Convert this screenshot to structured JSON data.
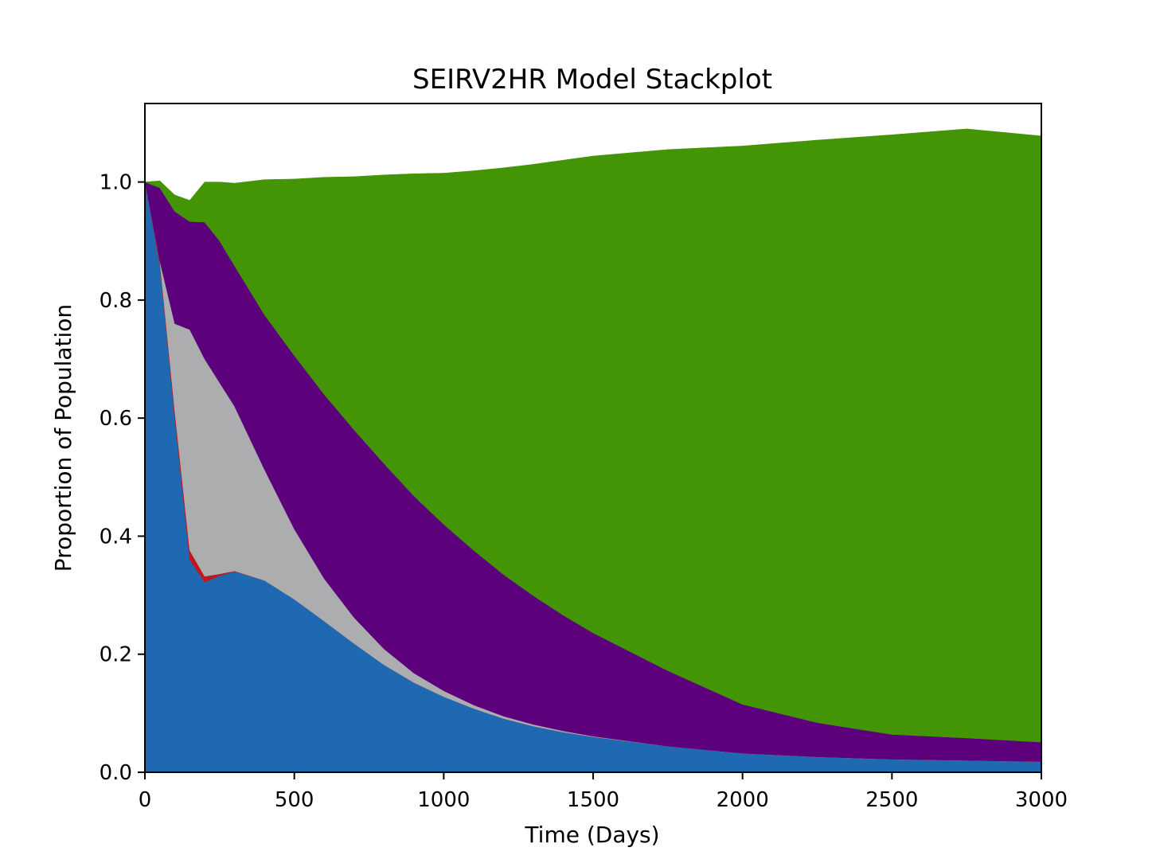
{
  "chart_data": {
    "type": "area",
    "stacked": true,
    "title": "SEIRV2HR Model Stackplot",
    "xlabel": "Time (Days)",
    "ylabel": "Proportion of Population",
    "xlim": [
      0,
      3000
    ],
    "ylim": [
      0,
      1.133
    ],
    "xticks": [
      0,
      500,
      1000,
      1500,
      2000,
      2500,
      3000
    ],
    "xtick_labels": [
      "0",
      "500",
      "1000",
      "1500",
      "2000",
      "2500",
      "3000"
    ],
    "yticks": [
      0.0,
      0.2,
      0.4,
      0.6,
      0.8,
      1.0
    ],
    "ytick_labels": [
      "0.0",
      "0.2",
      "0.4",
      "0.6",
      "0.8",
      "1.0"
    ],
    "grid": false,
    "legend": "none",
    "x": [
      0,
      50,
      100,
      150,
      200,
      250,
      300,
      400,
      500,
      600,
      700,
      800,
      900,
      1000,
      1100,
      1200,
      1300,
      1400,
      1500,
      1750,
      2000,
      2250,
      2500,
      2750,
      3000
    ],
    "series": [
      {
        "color": "#1f69b3",
        "values": [
          1.0,
          0.86,
          0.6,
          0.36,
          0.322,
          0.333,
          0.34,
          0.325,
          0.293,
          0.256,
          0.218,
          0.182,
          0.152,
          0.128,
          0.108,
          0.091,
          0.078,
          0.068,
          0.06,
          0.044,
          0.032,
          0.026,
          0.022,
          0.02,
          0.018
        ]
      },
      {
        "color": "#c0161c",
        "values": [
          0.0,
          0.006,
          0.012,
          0.016,
          0.01,
          0.003,
          0.001,
          0.0,
          0.0,
          0.0,
          0.0,
          0.0,
          0.0,
          0.0,
          0.0,
          0.0,
          0.0,
          0.0,
          0.0,
          0.0,
          0.0,
          0.0,
          0.0,
          0.0,
          0.0
        ]
      },
      {
        "color": "#acadaf",
        "values": [
          0.0,
          0.0,
          0.148,
          0.374,
          0.368,
          0.324,
          0.279,
          0.188,
          0.119,
          0.072,
          0.044,
          0.027,
          0.016,
          0.01,
          0.006,
          0.004,
          0.003,
          0.002,
          0.001,
          0.0,
          0.0,
          0.0,
          0.0,
          0.0,
          0.0
        ]
      },
      {
        "color": "#5c007b",
        "values": [
          0.0,
          0.124,
          0.19,
          0.183,
          0.232,
          0.24,
          0.238,
          0.262,
          0.294,
          0.312,
          0.318,
          0.314,
          0.3,
          0.282,
          0.262,
          0.24,
          0.218,
          0.196,
          0.175,
          0.128,
          0.083,
          0.058,
          0.042,
          0.038,
          0.033
        ]
      },
      {
        "color": "#439505",
        "values": [
          0.0,
          0.012,
          0.028,
          0.036,
          0.068,
          0.1,
          0.14,
          0.229,
          0.299,
          0.368,
          0.429,
          0.489,
          0.546,
          0.595,
          0.643,
          0.689,
          0.731,
          0.771,
          0.808,
          0.883,
          0.946,
          0.987,
          1.016,
          1.032,
          1.027
        ]
      }
    ]
  }
}
